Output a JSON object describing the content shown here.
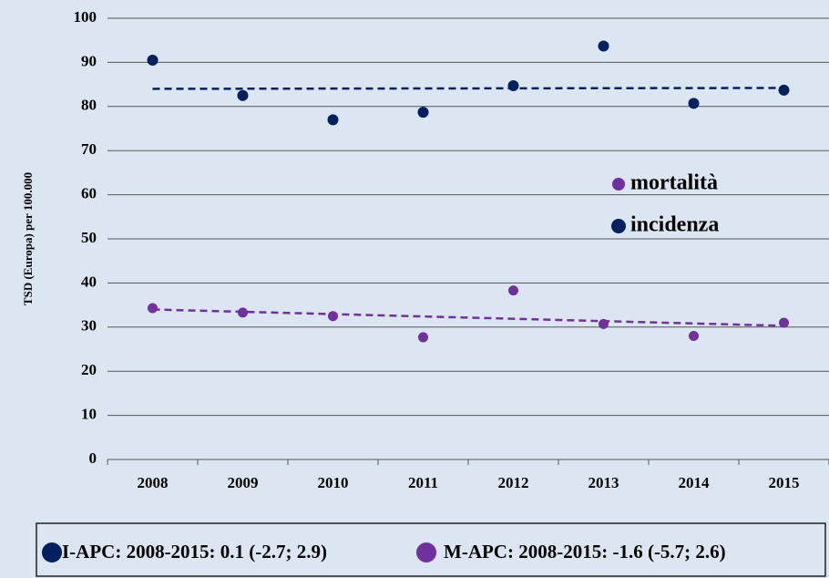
{
  "chart_data": {
    "type": "scatter",
    "y_label": "TSD (Europa) per 100.000",
    "categories": [
      "2008",
      "2009",
      "2010",
      "2011",
      "2012",
      "2013",
      "2014",
      "2015"
    ],
    "series": [
      {
        "name": "incidenza",
        "color": "#002060",
        "values": [
          90.5,
          82.5,
          77,
          78.7,
          84.7,
          93.7,
          80.7,
          83.7
        ],
        "trend": [
          84,
          84.2
        ]
      },
      {
        "name": "mortalità",
        "color": "#7030a0",
        "values": [
          34.3,
          33.3,
          32.5,
          27.7,
          38.3,
          30.7,
          28,
          31
        ],
        "trend": [
          34,
          30.3
        ]
      }
    ],
    "ylim": [
      0,
      100
    ],
    "yticks": [
      0,
      10,
      20,
      30,
      40,
      50,
      60,
      70,
      80,
      90,
      100
    ],
    "grid": true,
    "annotations": [
      "I-APC: 2008-2015: 0.1 (-2.7; 2.9)",
      "M-APC: 2008-2015: -1.6 (-5.7; 2.6)"
    ]
  }
}
